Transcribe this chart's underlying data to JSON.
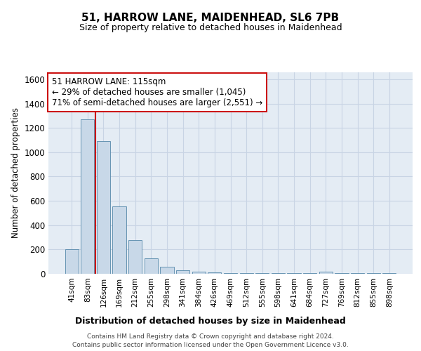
{
  "title1": "51, HARROW LANE, MAIDENHEAD, SL6 7PB",
  "title2": "Size of property relative to detached houses in Maidenhead",
  "xlabel": "Distribution of detached houses by size in Maidenhead",
  "ylabel": "Number of detached properties",
  "categories": [
    "41sqm",
    "83sqm",
    "126sqm",
    "169sqm",
    "212sqm",
    "255sqm",
    "298sqm",
    "341sqm",
    "384sqm",
    "426sqm",
    "469sqm",
    "512sqm",
    "555sqm",
    "598sqm",
    "641sqm",
    "684sqm",
    "727sqm",
    "769sqm",
    "812sqm",
    "855sqm",
    "898sqm"
  ],
  "values": [
    200,
    1270,
    1090,
    555,
    275,
    125,
    60,
    30,
    20,
    12,
    8,
    8,
    8,
    4,
    4,
    4,
    20,
    4,
    4,
    4,
    4
  ],
  "bar_color": "#c8d8e8",
  "bar_edge_color": "#5588aa",
  "annotation_text_line1": "51 HARROW LANE: 115sqm",
  "annotation_text_line2": "← 29% of detached houses are smaller (1,045)",
  "annotation_text_line3": "71% of semi-detached houses are larger (2,551) →",
  "red_line_color": "#cc1111",
  "grid_color": "#c8d4e4",
  "background_color": "#e4ecf4",
  "footer1": "Contains HM Land Registry data © Crown copyright and database right 2024.",
  "footer2": "Contains public sector information licensed under the Open Government Licence v3.0.",
  "ylim": [
    0,
    1660
  ],
  "yticks": [
    0,
    200,
    400,
    600,
    800,
    1000,
    1200,
    1400,
    1600
  ]
}
